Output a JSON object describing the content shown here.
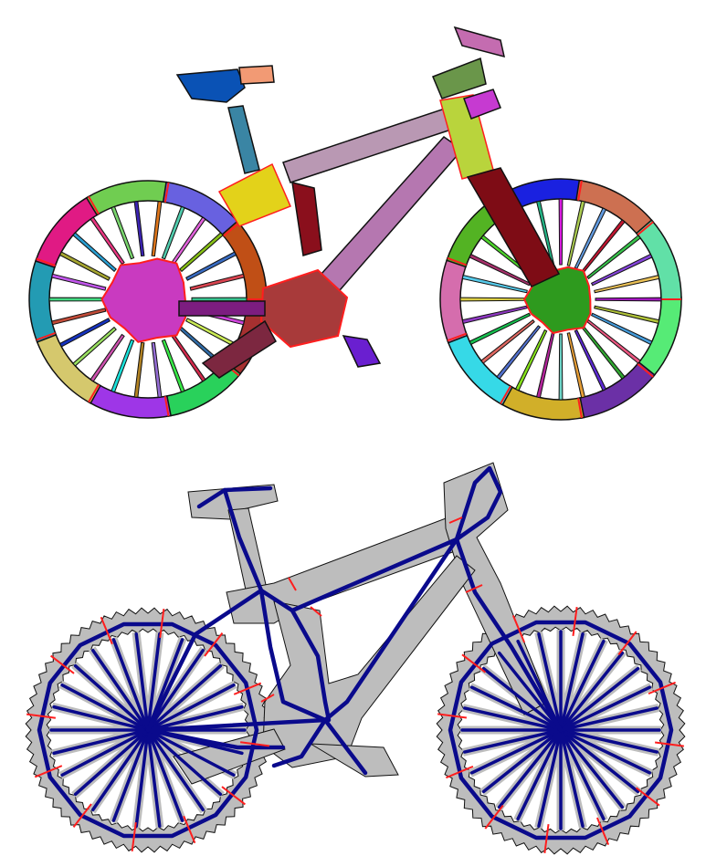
{
  "figure": {
    "panels": [
      {
        "kind": "part-segmentation",
        "subject": "bicycle"
      },
      {
        "kind": "skeleton-graph",
        "subject": "bicycle"
      }
    ],
    "colors": {
      "background": "#ffffff",
      "outline": "#111111",
      "boundary": "#ff1e1e",
      "silhouette": "#bdbdbd",
      "skeleton": "#0a0a8c"
    }
  }
}
